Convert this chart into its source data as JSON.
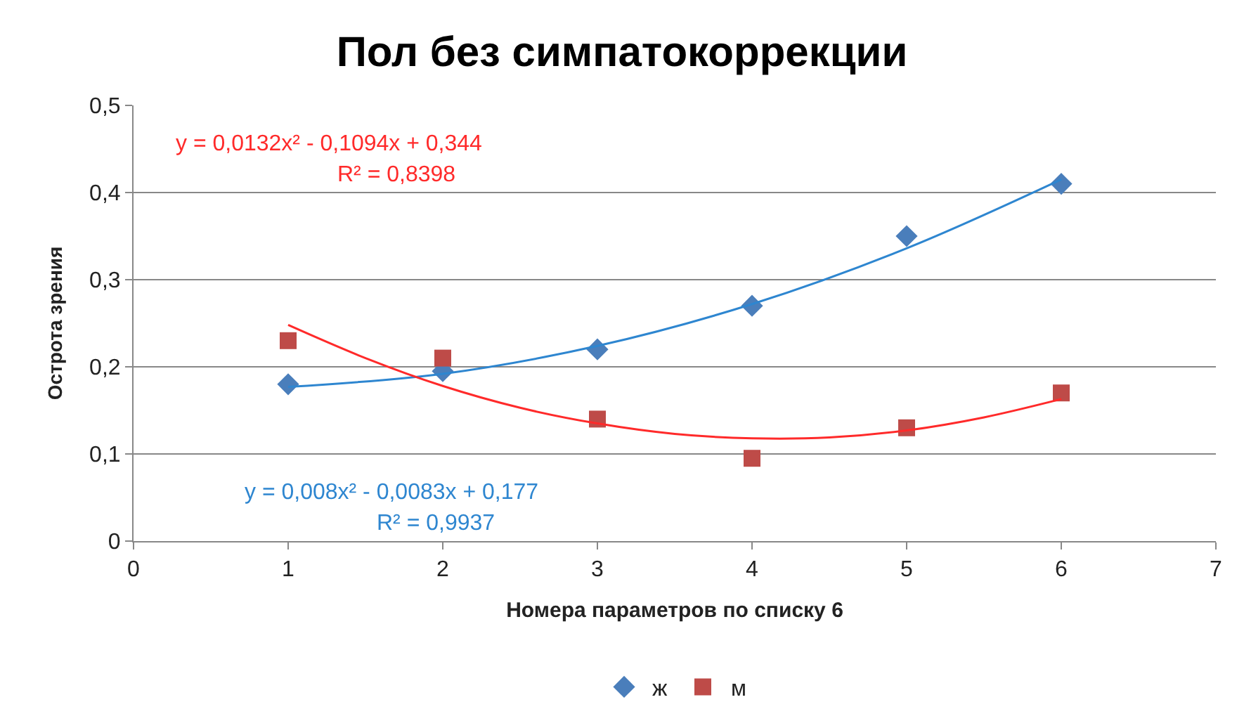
{
  "chart_data": {
    "type": "scatter",
    "title": "Пол без симпатокоррекции",
    "xlabel": "Номера параметров по списку 6",
    "ylabel": "Острота зрения",
    "x": [
      1,
      2,
      3,
      4,
      5,
      6
    ],
    "series": [
      {
        "name": "ж",
        "color": "#4a7ebb",
        "marker": "diamond",
        "values": [
          0.18,
          0.195,
          0.22,
          0.27,
          0.35,
          0.41
        ]
      },
      {
        "name": "м",
        "color": "#be4b48",
        "marker": "square",
        "values": [
          0.23,
          0.21,
          0.14,
          0.095,
          0.13,
          0.17
        ]
      },
      {
        "type": "line",
        "color": "#2e86d0",
        "marker": "none",
        "x": [
          1,
          2,
          3,
          4,
          5,
          6
        ],
        "values": [
          0.177,
          0.192,
          0.224,
          0.272,
          0.336,
          0.415
        ]
      },
      {
        "type": "line",
        "color": "#ff2a2a",
        "marker": "none",
        "x": [
          1,
          1.5,
          2,
          2.5,
          3,
          3.5,
          4,
          4.5,
          5,
          5.5,
          6
        ],
        "values": [
          0.248,
          0.21,
          0.178,
          0.153,
          0.135,
          0.123,
          0.118,
          0.119,
          0.127,
          0.142,
          0.163
        ]
      }
    ],
    "annotations": [
      "y = 0,0132x² - 0,1094x + 0,344",
      "R² = 0,8398",
      "y = 0,008x² - 0,0083x + 0,177",
      "R² = 0,9937"
    ],
    "xlim": [
      0,
      7
    ],
    "xticks": [
      0,
      1,
      2,
      3,
      4,
      5,
      6,
      7
    ],
    "ylim": [
      0,
      0.5
    ],
    "yticks": [
      0,
      {
        "value": 0.1,
        "label": "0,1"
      },
      {
        "value": 0.2,
        "label": "0,2"
      },
      {
        "value": 0.3,
        "label": "0,3"
      },
      {
        "value": 0.4,
        "label": "0,4"
      },
      {
        "value": 0.5,
        "label": "0,5"
      }
    ],
    "grid": "y",
    "legend": "bottom"
  }
}
